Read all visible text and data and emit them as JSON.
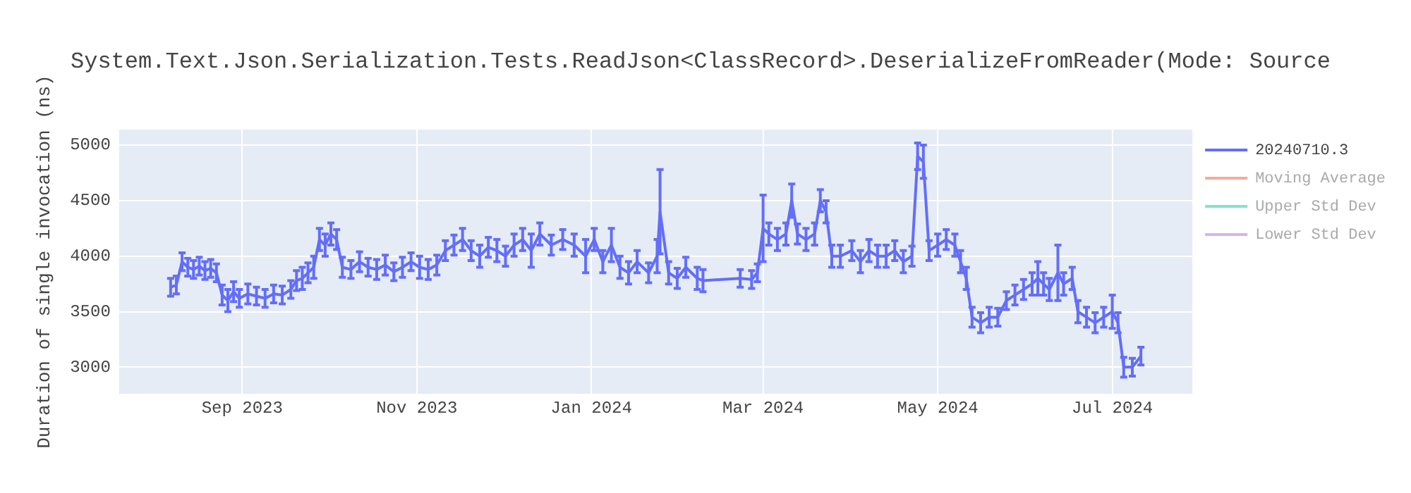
{
  "chart_data": {
    "type": "line",
    "title": "System.Text.Json.Serialization.Tests.ReadJson<ClassRecord>.DeserializeFromReader(Mode: Source",
    "ylabel": "Duration of single invocation (ns)",
    "x": [
      "2023-08-07",
      "2023-08-09",
      "2023-08-11",
      "2023-08-13",
      "2023-08-15",
      "2023-08-17",
      "2023-08-19",
      "2023-08-21",
      "2023-08-23",
      "2023-08-25",
      "2023-08-27",
      "2023-08-29",
      "2023-08-31",
      "2023-09-03",
      "2023-09-06",
      "2023-09-09",
      "2023-09-12",
      "2023-09-15",
      "2023-09-18",
      "2023-09-20",
      "2023-09-22",
      "2023-09-24",
      "2023-09-26",
      "2023-09-28",
      "2023-09-30",
      "2023-10-02",
      "2023-10-04",
      "2023-10-06",
      "2023-10-09",
      "2023-10-12",
      "2023-10-15",
      "2023-10-18",
      "2023-10-21",
      "2023-10-24",
      "2023-10-27",
      "2023-10-30",
      "2023-11-02",
      "2023-11-05",
      "2023-11-08",
      "2023-11-11",
      "2023-11-14",
      "2023-11-17",
      "2023-11-20",
      "2023-11-23",
      "2023-11-26",
      "2023-11-29",
      "2023-12-02",
      "2023-12-05",
      "2023-12-08",
      "2023-12-11",
      "2023-12-14",
      "2023-12-18",
      "2023-12-22",
      "2023-12-26",
      "2023-12-30",
      "2024-01-02",
      "2024-01-05",
      "2024-01-08",
      "2024-01-11",
      "2024-01-14",
      "2024-01-17",
      "2024-01-21",
      "2024-01-24",
      "2024-01-25",
      "2024-01-28",
      "2024-01-31",
      "2024-02-03",
      "2024-02-07",
      "2024-02-09",
      "2024-02-22",
      "2024-02-26",
      "2024-02-28",
      "2024-03-01",
      "2024-03-03",
      "2024-03-06",
      "2024-03-09",
      "2024-03-11",
      "2024-03-13",
      "2024-03-16",
      "2024-03-19",
      "2024-03-21",
      "2024-03-23",
      "2024-03-25",
      "2024-03-28",
      "2024-04-01",
      "2024-04-04",
      "2024-04-07",
      "2024-04-10",
      "2024-04-13",
      "2024-04-16",
      "2024-04-19",
      "2024-04-22",
      "2024-04-24",
      "2024-04-26",
      "2024-04-28",
      "2024-05-01",
      "2024-05-04",
      "2024-05-07",
      "2024-05-09",
      "2024-05-11",
      "2024-05-13",
      "2024-05-16",
      "2024-05-19",
      "2024-05-22",
      "2024-05-25",
      "2024-05-28",
      "2024-05-31",
      "2024-06-03",
      "2024-06-05",
      "2024-06-07",
      "2024-06-09",
      "2024-06-12",
      "2024-06-14",
      "2024-06-17",
      "2024-06-19",
      "2024-06-22",
      "2024-06-25",
      "2024-06-28",
      "2024-07-01",
      "2024-07-03",
      "2024-07-05",
      "2024-07-08",
      "2024-07-11"
    ],
    "series": [
      {
        "name": "20240710.3",
        "color": "#636efa",
        "values": [
          3720,
          3740,
          3950,
          3900,
          3880,
          3910,
          3870,
          3890,
          3850,
          3650,
          3600,
          3680,
          3620,
          3660,
          3640,
          3620,
          3660,
          3650,
          3700,
          3780,
          3800,
          3850,
          3900,
          4150,
          4100,
          4200,
          4150,
          3900,
          3880,
          3950,
          3900,
          3880,
          3920,
          3860,
          3900,
          3950,
          3900,
          3880,
          3920,
          4050,
          4100,
          4150,
          4050,
          4000,
          4080,
          4050,
          4000,
          4100,
          4150,
          4050,
          4200,
          4100,
          4150,
          4100,
          4000,
          4150,
          3950,
          4100,
          3900,
          3850,
          3950,
          3850,
          4000,
          4400,
          3850,
          3800,
          3900,
          3800,
          3780,
          3800,
          3790,
          3850,
          4250,
          4200,
          4150,
          4200,
          4500,
          4200,
          4150,
          4200,
          4500,
          4400,
          4000,
          4000,
          4050,
          3950,
          4050,
          4000,
          4000,
          4050,
          3950,
          4000,
          4900,
          4850,
          4050,
          4100,
          4150,
          4100,
          3950,
          3800,
          3450,
          3400,
          3450,
          3450,
          3600,
          3650,
          3700,
          3750,
          3800,
          3750,
          3700,
          3850,
          3750,
          3800,
          3500,
          3450,
          3400,
          3450,
          3500,
          3400,
          3000,
          3000,
          3100
        ],
        "errors": [
          80,
          80,
          80,
          80,
          80,
          80,
          80,
          80,
          80,
          90,
          100,
          90,
          80,
          90,
          80,
          80,
          80,
          80,
          80,
          90,
          100,
          90,
          100,
          100,
          100,
          100,
          90,
          90,
          80,
          90,
          80,
          90,
          90,
          80,
          90,
          80,
          100,
          90,
          90,
          90,
          90,
          100,
          90,
          100,
          90,
          100,
          90,
          100,
          100,
          150,
          100,
          90,
          90,
          100,
          150,
          100,
          100,
          150,
          100,
          100,
          100,
          90,
          150,
          380,
          100,
          90,
          90,
          100,
          100,
          80,
          80,
          80,
          300,
          100,
          100,
          100,
          150,
          90,
          100,
          100,
          100,
          100,
          100,
          100,
          90,
          100,
          100,
          100,
          100,
          90,
          100,
          90,
          120,
          150,
          90,
          100,
          90,
          100,
          100,
          100,
          90,
          90,
          90,
          80,
          80,
          90,
          90,
          100,
          150,
          100,
          100,
          250,
          100,
          100,
          100,
          90,
          90,
          90,
          150,
          90,
          90,
          80,
          80
        ]
      },
      {
        "name": "Moving Average",
        "color": "#f7aa9d",
        "values": [
          null,
          null,
          null,
          null,
          null,
          null,
          null,
          null,
          null,
          null,
          null,
          null,
          null,
          null,
          null,
          null,
          null,
          null,
          null,
          null,
          null,
          null,
          null,
          null,
          null,
          null,
          null,
          null,
          null,
          null,
          null,
          null,
          null,
          null,
          null,
          null,
          null,
          null,
          null,
          null,
          null,
          null,
          null,
          null,
          null,
          null,
          null,
          null,
          null,
          null,
          null,
          null,
          null,
          null,
          null,
          null,
          null,
          null,
          null,
          null,
          null,
          null,
          null,
          null,
          null,
          null,
          null,
          null,
          null,
          null,
          null,
          null,
          null,
          null,
          null,
          null,
          null,
          null,
          null,
          null,
          null,
          null,
          null,
          null,
          null,
          null,
          null,
          null,
          null,
          null,
          null,
          null,
          null,
          null,
          null,
          null,
          null,
          null,
          null,
          null,
          null,
          null,
          null,
          null,
          null,
          null,
          null,
          null,
          null,
          null,
          null,
          null,
          null,
          null,
          null,
          null,
          null,
          null,
          null,
          null,
          null,
          null,
          null
        ]
      },
      {
        "name": "Upper Std Dev",
        "color": "#7fe5ca",
        "values": [
          null,
          null,
          null,
          null,
          null,
          null,
          null,
          null,
          null,
          null,
          null,
          null,
          null,
          null,
          null,
          null,
          null,
          null,
          null,
          null,
          null,
          null,
          null,
          null,
          null,
          null,
          null,
          null,
          null,
          null,
          null,
          null,
          null,
          null,
          null,
          null,
          null,
          null,
          null,
          null,
          null,
          null,
          null,
          null,
          null,
          null,
          null,
          null,
          null,
          null,
          null,
          null,
          null,
          null,
          null,
          null,
          null,
          null,
          null,
          null,
          null,
          null,
          null,
          null,
          null,
          null,
          null,
          null,
          null,
          null,
          null,
          null,
          null,
          null,
          null,
          null,
          null,
          null,
          null,
          null,
          null,
          null,
          null,
          null,
          null,
          null,
          null,
          null,
          null,
          null,
          null,
          null,
          null,
          null,
          null,
          null,
          null,
          null,
          null,
          null,
          null,
          null,
          null,
          null,
          null,
          null,
          null,
          null,
          null,
          null,
          null,
          null,
          null,
          null,
          null,
          null,
          null,
          null,
          null,
          null,
          null,
          null,
          null
        ]
      },
      {
        "name": "Lower Std Dev",
        "color": "#d5b1fc",
        "values": [
          null,
          null,
          null,
          null,
          null,
          null,
          null,
          null,
          null,
          null,
          null,
          null,
          null,
          null,
          null,
          null,
          null,
          null,
          null,
          null,
          null,
          null,
          null,
          null,
          null,
          null,
          null,
          null,
          null,
          null,
          null,
          null,
          null,
          null,
          null,
          null,
          null,
          null,
          null,
          null,
          null,
          null,
          null,
          null,
          null,
          null,
          null,
          null,
          null,
          null,
          null,
          null,
          null,
          null,
          null,
          null,
          null,
          null,
          null,
          null,
          null,
          null,
          null,
          null,
          null,
          null,
          null,
          null,
          null,
          null,
          null,
          null,
          null,
          null,
          null,
          null,
          null,
          null,
          null,
          null,
          null,
          null,
          null,
          null,
          null,
          null,
          null,
          null,
          null,
          null,
          null,
          null,
          null,
          null,
          null,
          null,
          null,
          null,
          null,
          null,
          null,
          null,
          null,
          null,
          null,
          null,
          null,
          null,
          null,
          null,
          null,
          null,
          null,
          null,
          null,
          null,
          null,
          null,
          null,
          null,
          null,
          null,
          null
        ]
      }
    ],
    "xlim": [
      "2023-07-20",
      "2024-07-29"
    ],
    "xticks": [
      {
        "value": "2023-09-01",
        "label": "Sep 2023"
      },
      {
        "value": "2023-11-01",
        "label": "Nov 2023"
      },
      {
        "value": "2024-01-01",
        "label": "Jan 2024"
      },
      {
        "value": "2024-03-01",
        "label": "Mar 2024"
      },
      {
        "value": "2024-05-01",
        "label": "May 2024"
      },
      {
        "value": "2024-07-01",
        "label": "Jul 2024"
      }
    ],
    "ylim": [
      2760,
      5140
    ],
    "yticks": [
      3000,
      3500,
      4000,
      4500,
      5000
    ],
    "grid": true,
    "legend": "top right",
    "marker": "none",
    "line_style": "solid"
  }
}
